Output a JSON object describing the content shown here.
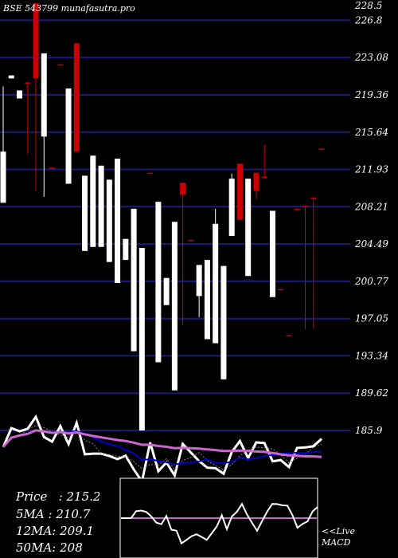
{
  "title": "BSE 543799 munafasutra.pro",
  "info": {
    "price_label": "Price",
    "price_value": "215.2",
    "ma5_label": "5MA",
    "ma5_value": "210.7",
    "ma12_label": "12MA",
    "ma12_value": "209.1",
    "ma50_label": "50MA",
    "ma50_value": "208"
  },
  "live_label": "<<Live",
  "macd_label": "MACD",
  "colors": {
    "up": "#ffffff",
    "down": "#cc0000",
    "grid": "#1a1a7a",
    "ma_fast": "#0000cc",
    "ma_slow": "#cc66cc",
    "background": "#000000"
  },
  "chart_data": {
    "type": "candlestick",
    "y_ticks": [
      "228.5",
      "226.8",
      "223.08",
      "219.36",
      "215.64",
      "211.93",
      "208.21",
      "204.49",
      "200.77",
      "197.05",
      "193.34",
      "189.62",
      "185.9"
    ],
    "ylim": [
      185.9,
      228.5
    ],
    "candles": [
      {
        "o": 213.7,
        "h": 220.2,
        "l": 208.6,
        "c": 208.6
      },
      {
        "o": 221.3,
        "h": 221.3,
        "l": 221.0,
        "c": 221.0
      },
      {
        "o": 219.8,
        "h": 219.8,
        "l": 219.0,
        "c": 219.0
      },
      {
        "o": 220.6,
        "h": 220.6,
        "l": 213.5,
        "c": 220.6
      },
      {
        "o": 221.0,
        "h": 228.5,
        "l": 209.8,
        "c": 228.5
      },
      {
        "o": 223.5,
        "h": 223.5,
        "l": 209.2,
        "c": 215.2
      },
      {
        "o": 212.1,
        "h": 212.1,
        "l": 212.1,
        "c": 212.1
      },
      {
        "o": 222.4,
        "h": 222.4,
        "l": 222.4,
        "c": 222.4
      },
      {
        "o": 220.0,
        "h": 220.0,
        "l": 210.5,
        "c": 210.5
      },
      {
        "o": 213.7,
        "h": 224.5,
        "l": 213.7,
        "c": 224.5
      },
      {
        "o": 211.3,
        "h": 211.3,
        "l": 203.8,
        "c": 203.8
      },
      {
        "o": 213.3,
        "h": 213.3,
        "l": 204.2,
        "c": 204.2
      },
      {
        "o": 212.3,
        "h": 212.3,
        "l": 204.2,
        "c": 204.2
      },
      {
        "o": 210.9,
        "h": 210.9,
        "l": 202.7,
        "c": 202.7
      },
      {
        "o": 213.0,
        "h": 213.0,
        "l": 200.6,
        "c": 200.6
      },
      {
        "o": 205.0,
        "h": 205.0,
        "l": 202.9,
        "c": 202.9
      },
      {
        "o": 208.0,
        "h": 208.0,
        "l": 193.8,
        "c": 193.8
      },
      {
        "o": 204.1,
        "h": 204.1,
        "l": 185.9,
        "c": 185.9
      },
      {
        "o": 211.6,
        "h": 211.6,
        "l": 211.6,
        "c": 211.6
      },
      {
        "o": 208.7,
        "h": 208.7,
        "l": 192.7,
        "c": 192.7
      },
      {
        "o": 201.1,
        "h": 201.1,
        "l": 198.4,
        "c": 198.4
      },
      {
        "o": 206.7,
        "h": 206.7,
        "l": 189.9,
        "c": 189.9
      },
      {
        "o": 209.4,
        "h": 210.6,
        "l": 196.4,
        "c": 210.6
      },
      {
        "o": 204.9,
        "h": 204.9,
        "l": 204.9,
        "c": 204.9
      },
      {
        "o": 202.4,
        "h": 202.4,
        "l": 197.2,
        "c": 199.3
      },
      {
        "o": 202.9,
        "h": 202.9,
        "l": 195.0,
        "c": 195.0
      },
      {
        "o": 206.5,
        "h": 208.0,
        "l": 194.6,
        "c": 194.6
      },
      {
        "o": 202.3,
        "h": 202.3,
        "l": 191.0,
        "c": 191.0
      },
      {
        "o": 211.0,
        "h": 211.5,
        "l": 205.3,
        "c": 205.3
      },
      {
        "o": 206.9,
        "h": 212.5,
        "l": 206.9,
        "c": 212.5
      },
      {
        "o": 211.0,
        "h": 211.0,
        "l": 201.3,
        "c": 201.3
      },
      {
        "o": 209.8,
        "h": 211.6,
        "l": 209.0,
        "c": 211.6
      },
      {
        "o": 211.2,
        "h": 214.4,
        "l": 211.2,
        "c": 211.2
      },
      {
        "o": 207.8,
        "h": 207.8,
        "l": 199.2,
        "c": 199.2
      },
      {
        "o": 200.0,
        "h": 200.0,
        "l": 200.0,
        "c": 200.0
      },
      {
        "o": 195.4,
        "h": 195.4,
        "l": 195.4,
        "c": 195.4
      },
      {
        "o": 208.0,
        "h": 208.0,
        "l": 208.0,
        "c": 208.0
      },
      {
        "o": 208.3,
        "h": 208.3,
        "l": 196.0,
        "c": 208.3
      },
      {
        "o": 209.1,
        "h": 209.1,
        "l": 196.0,
        "c": 209.1
      },
      {
        "o": 214.0,
        "h": 214.0,
        "l": 214.0,
        "c": 214.0
      }
    ],
    "grid": true,
    "legend": "bottom-left"
  }
}
